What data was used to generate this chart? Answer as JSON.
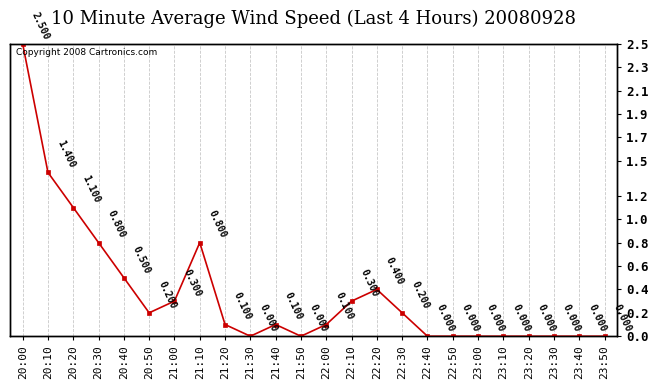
{
  "title": "10 Minute Average Wind Speed (Last 4 Hours) 20080928",
  "copyright": "Copyright 2008 Cartronics.com",
  "x_labels": [
    "20:00",
    "20:10",
    "20:20",
    "20:30",
    "20:40",
    "20:50",
    "21:00",
    "21:10",
    "21:20",
    "21:30",
    "21:40",
    "21:50",
    "22:00",
    "22:10",
    "22:20",
    "22:30",
    "22:40",
    "22:50",
    "23:00",
    "23:10",
    "23:20",
    "23:30",
    "23:40",
    "23:50"
  ],
  "y_values": [
    2.5,
    1.4,
    1.1,
    0.8,
    0.5,
    0.2,
    0.3,
    0.8,
    0.1,
    0.0,
    0.1,
    0.0,
    0.1,
    0.3,
    0.4,
    0.2,
    0.0,
    0.0,
    0.0,
    0.0,
    0.0,
    0.0,
    0.0,
    0.0
  ],
  "line_color": "#cc0000",
  "marker_color": "#cc0000",
  "background_color": "#ffffff",
  "grid_color": "#c8c8c8",
  "ylim_min": 0.0,
  "ylim_max": 2.5,
  "right_yticks": [
    0.0,
    0.2,
    0.4,
    0.6,
    0.8,
    1.0,
    1.2,
    1.5,
    1.7,
    1.9,
    2.1,
    2.3,
    2.5
  ],
  "title_fontsize": 13,
  "axis_label_fontsize": 8,
  "annotation_fontsize": 7,
  "copyright_fontsize": 6.5
}
